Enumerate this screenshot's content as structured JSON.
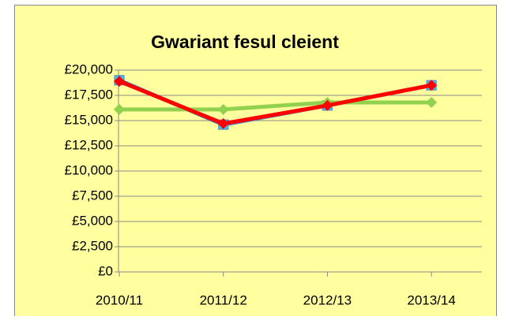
{
  "chart_data": {
    "type": "line",
    "title": "Gwariant fesul cleient",
    "categories": [
      "2010/11",
      "2011/12",
      "2012/13",
      "2013/14"
    ],
    "series": [
      {
        "color": "#4a7ebb",
        "marker": "square",
        "marker_color": "#33ccff",
        "values": [
          19000,
          14600,
          16500,
          18500
        ]
      },
      {
        "color": "#92d050",
        "marker": "diamond",
        "marker_color": "#92d050",
        "values": [
          16100,
          16100,
          16800,
          16800
        ]
      },
      {
        "color": "#ff0000",
        "marker": "diamond",
        "marker_color": "#ff0000",
        "values": [
          18900,
          14700,
          16500,
          18500
        ]
      }
    ],
    "ylim": [
      0,
      20000
    ],
    "yticks": [
      {
        "value": 0,
        "label": "£0"
      },
      {
        "value": 2500,
        "label": "£2,500"
      },
      {
        "value": 5000,
        "label": "£5,000"
      },
      {
        "value": 7500,
        "label": "£7,500"
      },
      {
        "value": 10000,
        "label": "£10,000"
      },
      {
        "value": 12500,
        "label": "£12,500"
      },
      {
        "value": 15000,
        "label": "£15,000"
      },
      {
        "value": 17500,
        "label": "£17,500"
      },
      {
        "value": 20000,
        "label": "£20,000"
      }
    ],
    "grid": true,
    "background": "#ffffa0"
  }
}
